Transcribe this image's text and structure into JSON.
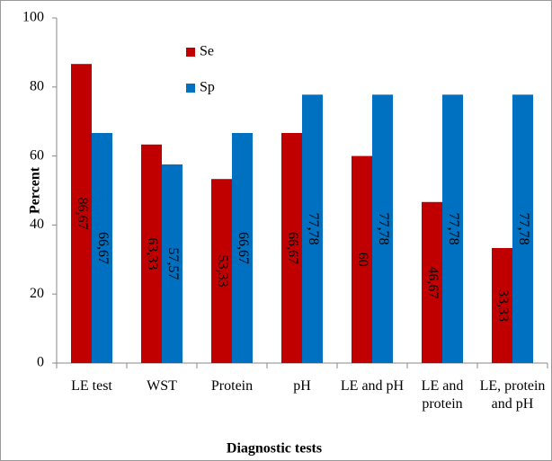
{
  "chart_data": {
    "type": "bar",
    "x_label": "Diagnostic tests",
    "y_label": "Percent",
    "categories": [
      "LE test",
      "WST",
      "Protein",
      "pH",
      "LE and pH",
      "LE and protein",
      "LE, protein and pH"
    ],
    "series": [
      {
        "name": "Se",
        "color": "#c00000",
        "values": [
          86.67,
          63.33,
          53.33,
          66.67,
          60,
          46.67,
          33.33
        ],
        "value_labels": [
          "86,67",
          "63,33",
          "53,33",
          "66,67",
          "60",
          "46,67",
          "33,33"
        ]
      },
      {
        "name": "Sp",
        "color": "#0070c0",
        "values": [
          66.67,
          57.57,
          66.67,
          77.78,
          77.78,
          77.78,
          77.78
        ],
        "value_labels": [
          "66,67",
          "57,57",
          "66,67",
          "77,78",
          "77,78",
          "77,78",
          "77,78"
        ]
      }
    ],
    "ylim": [
      0,
      100
    ],
    "yticks": [
      0,
      20,
      40,
      60,
      80,
      100
    ],
    "legend": "top-left"
  }
}
